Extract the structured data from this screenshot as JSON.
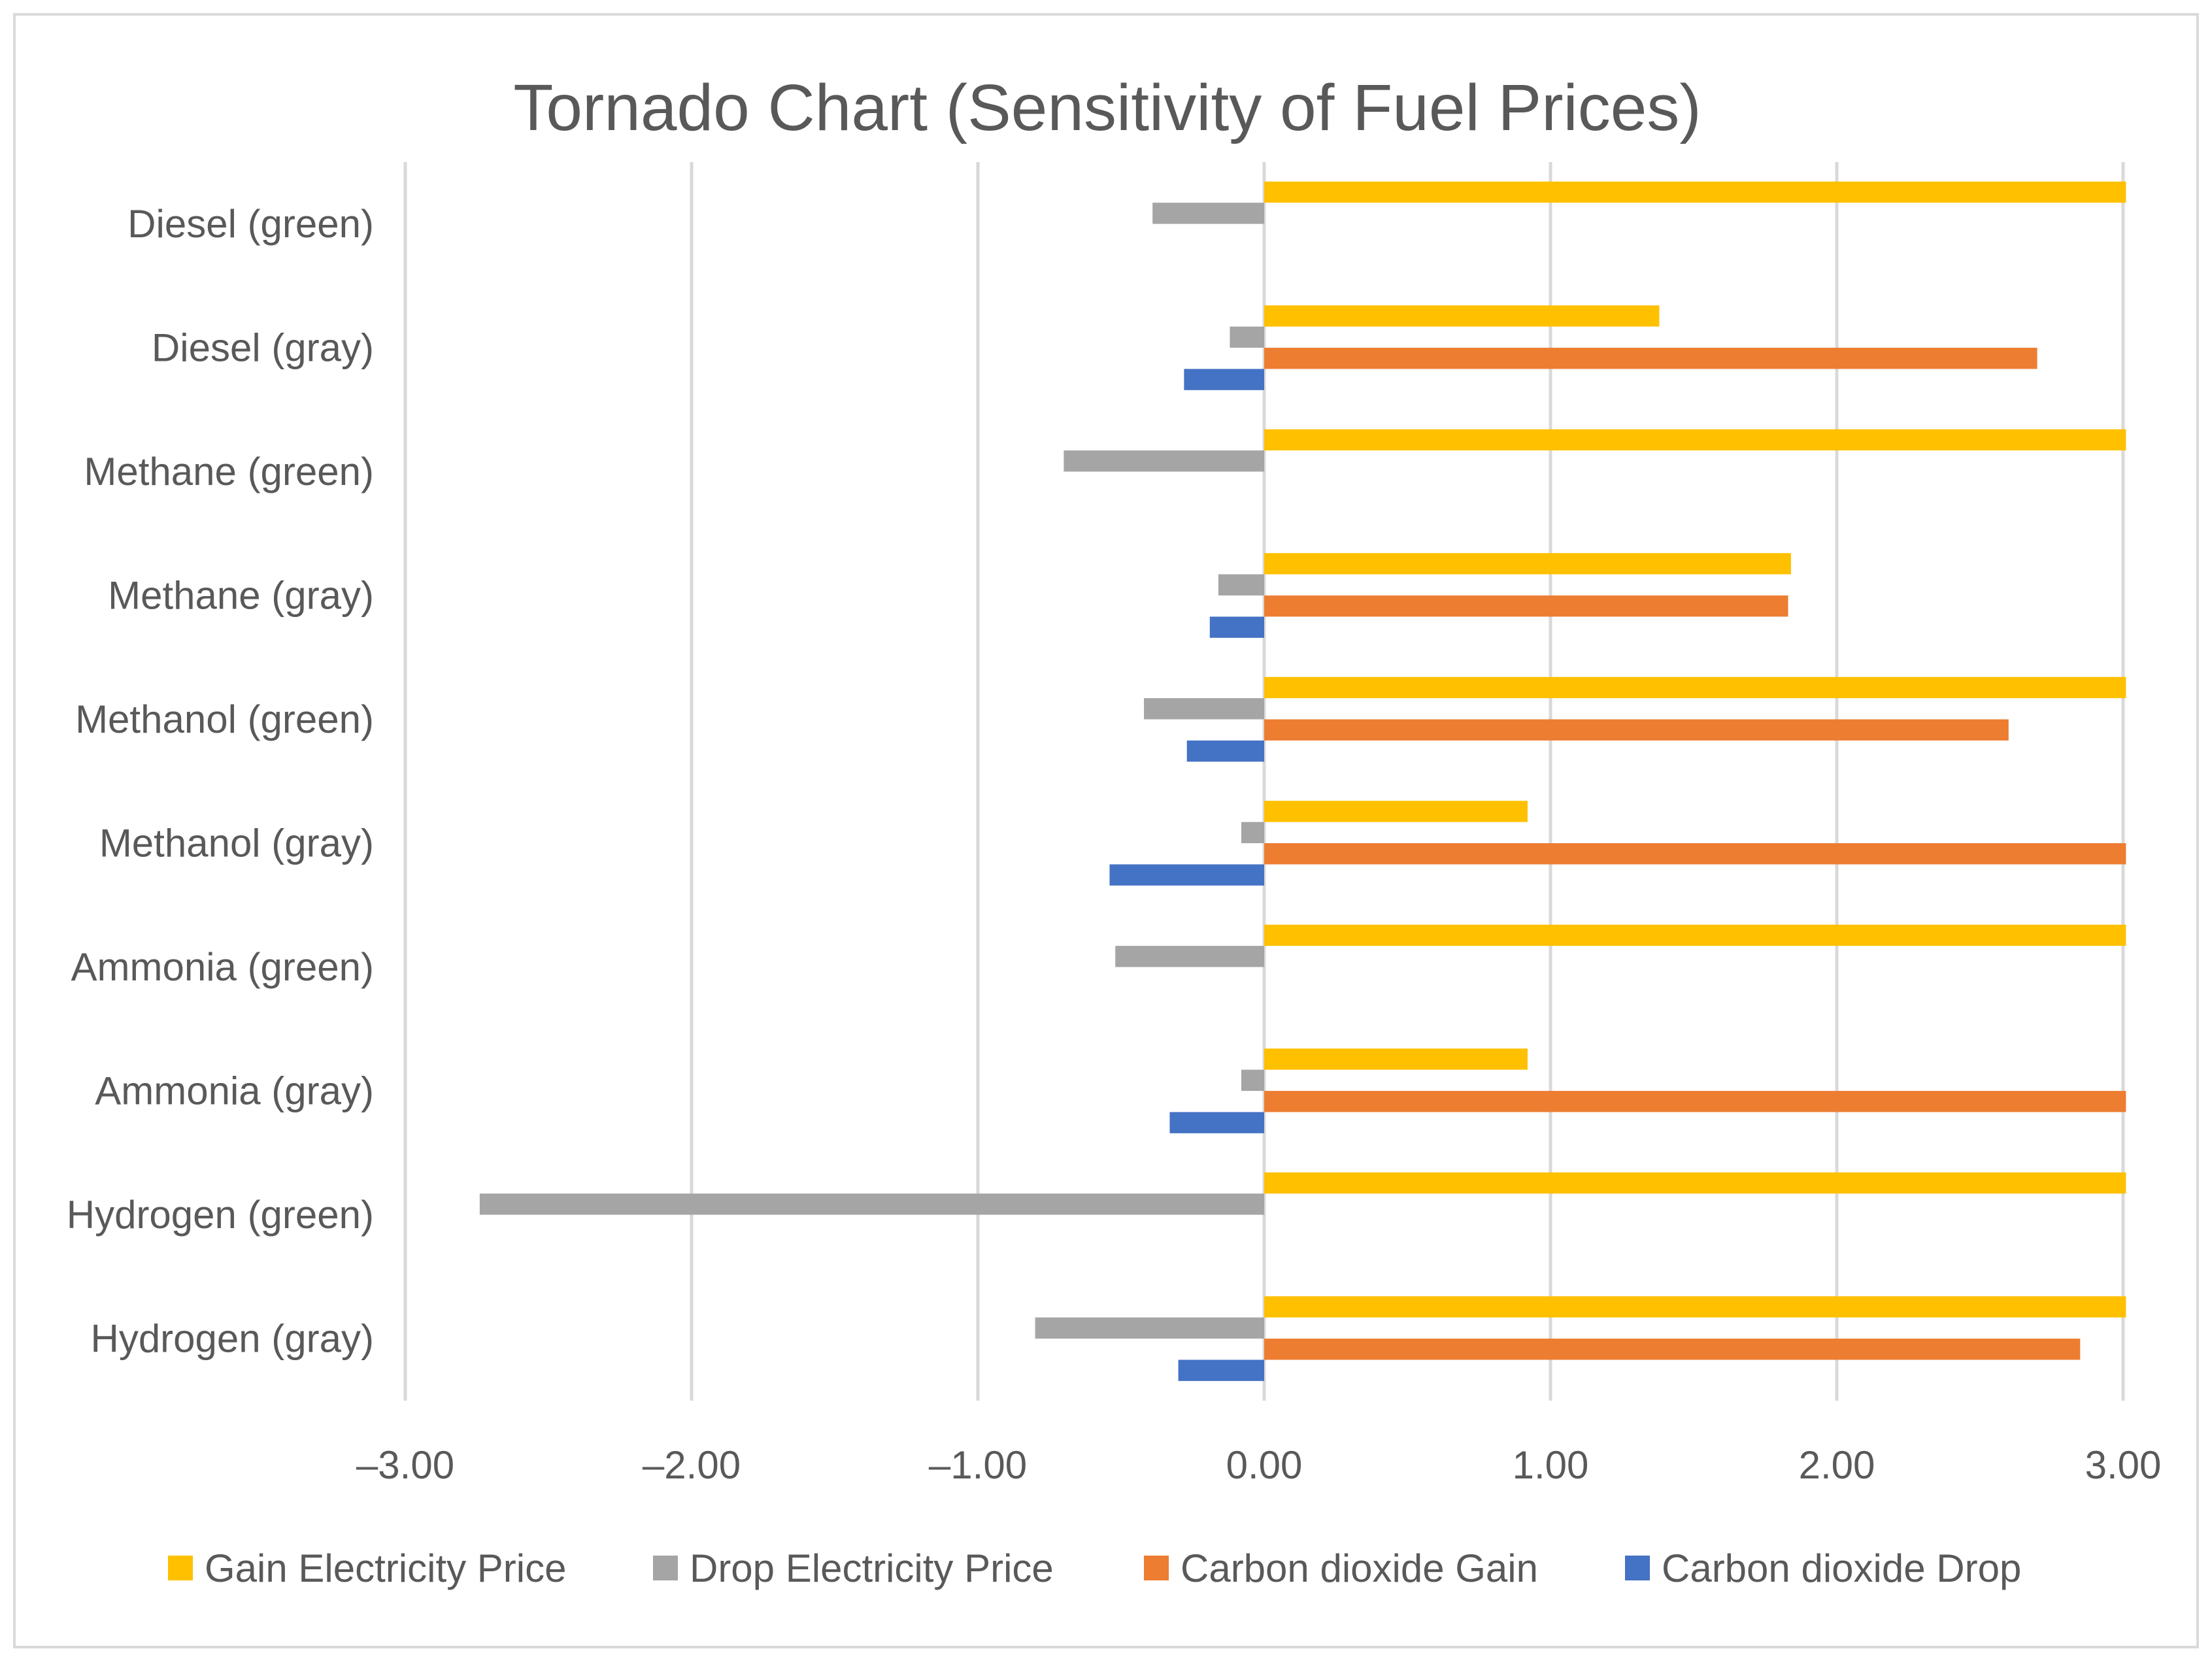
{
  "chart_data": {
    "type": "bar",
    "orientation": "horizontal",
    "title": "Tornado Chart (Sensitivity of Fuel Prices)",
    "xlabel": "",
    "ylabel": "",
    "xlim": [
      -3,
      3
    ],
    "x_ticks": [
      "–3.00",
      "–2.00",
      "–1.00",
      "0.00",
      "1.00",
      "2.00",
      "3.00"
    ],
    "x_tick_values": [
      -3,
      -2,
      -1,
      0,
      1,
      2,
      3
    ],
    "grid": true,
    "legend_position": "bottom",
    "categories": [
      "Diesel (green)",
      "Diesel (gray)",
      "Methane (green)",
      "Methane (gray)",
      "Methanol (green)",
      "Methanol (gray)",
      "Ammonia (green)",
      "Ammonia (gray)",
      "Hydrogen (green)",
      "Hydrogen (gray)"
    ],
    "series": [
      {
        "name": "Gain Electricity Price",
        "color": "#FFC000",
        "values": [
          3.01,
          1.38,
          3.01,
          1.84,
          3.01,
          0.92,
          3.01,
          0.92,
          3.01,
          3.01
        ]
      },
      {
        "name": "Drop Electricity Price",
        "color": "#A5A5A5",
        "values": [
          -0.39,
          -0.12,
          -0.7,
          -0.16,
          -0.42,
          -0.08,
          -0.52,
          -0.08,
          -2.74,
          -0.8
        ]
      },
      {
        "name": "Carbon dioxide Gain",
        "color": "#ED7D31",
        "values": [
          null,
          2.7,
          null,
          1.83,
          2.6,
          3.01,
          null,
          3.01,
          null,
          2.85
        ]
      },
      {
        "name": "Carbon dioxide Drop",
        "color": "#4472C4",
        "values": [
          null,
          -0.28,
          null,
          -0.19,
          -0.27,
          -0.54,
          null,
          -0.33,
          null,
          -0.3
        ]
      }
    ]
  }
}
